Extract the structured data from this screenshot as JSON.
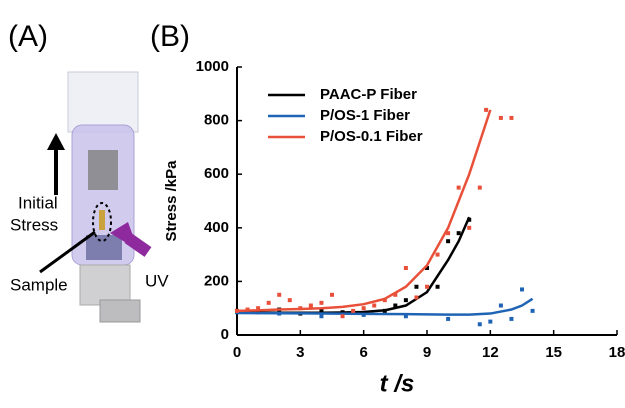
{
  "panels": [
    "(A)",
    "(B)"
  ],
  "illustration": {
    "labels": [
      "Initial",
      "Stress",
      "Sample",
      "UV"
    ]
  },
  "chart_data": {
    "type": "scatter",
    "xlabel": "t /s",
    "ylabel": "Stress /kPa",
    "xlim": [
      0,
      18
    ],
    "xticks": [
      0,
      3,
      6,
      9,
      12,
      15,
      18
    ],
    "ylim": [
      0,
      1000
    ],
    "yticks": [
      0,
      200,
      400,
      600,
      800,
      1000
    ],
    "legend": "upper-left",
    "series": [
      {
        "name": "PAAC-P Fiber",
        "color": "#000000",
        "x": [
          0,
          1,
          2,
          3,
          4,
          5,
          6,
          7,
          7.5,
          8,
          8.5,
          9,
          9.5,
          10,
          10.5,
          11
        ],
        "values": [
          90,
          85,
          95,
          80,
          90,
          85,
          80,
          90,
          110,
          130,
          180,
          250,
          180,
          350,
          380,
          430
        ],
        "fit": {
          "x": [
            0,
            1,
            2,
            3,
            4,
            5,
            6,
            7,
            8,
            9,
            10,
            10.5,
            11
          ],
          "values": [
            85,
            84,
            83,
            83,
            83,
            84,
            86,
            92,
            110,
            160,
            280,
            350,
            440
          ]
        }
      },
      {
        "name": "P/OS-1 Fiber",
        "color": "#1f64b4",
        "x": [
          0,
          2,
          4,
          6,
          8,
          10,
          11.5,
          12,
          12.5,
          13,
          13.5,
          14
        ],
        "values": [
          85,
          80,
          70,
          75,
          70,
          60,
          40,
          50,
          110,
          60,
          170,
          90
        ],
        "fit": {
          "x": [
            0,
            2,
            4,
            6,
            8,
            10,
            11,
            12,
            13,
            13.5,
            14
          ],
          "values": [
            82,
            81,
            80,
            79,
            78,
            76,
            76,
            80,
            95,
            110,
            135
          ]
        }
      },
      {
        "name": "P/OS-0.1 Fiber",
        "color": "#e8503a",
        "x": [
          0,
          0.5,
          1,
          1.5,
          2,
          2.5,
          3,
          3.5,
          4,
          4.5,
          5,
          5.5,
          6,
          6.5,
          7,
          7.5,
          8,
          8.5,
          9,
          9.5,
          10,
          10.5,
          11,
          11.5,
          11.8,
          12.5,
          13
        ],
        "values": [
          90,
          95,
          100,
          120,
          150,
          130,
          100,
          110,
          120,
          150,
          70,
          90,
          100,
          110,
          130,
          150,
          250,
          140,
          180,
          300,
          380,
          550,
          400,
          550,
          840,
          810,
          810
        ],
        "fit": {
          "x": [
            0,
            1,
            2,
            3,
            4,
            5,
            6,
            7,
            8,
            9,
            10,
            11,
            11.5,
            12
          ],
          "values": [
            90,
            92,
            95,
            97,
            100,
            105,
            115,
            135,
            180,
            260,
            400,
            600,
            720,
            840
          ]
        }
      }
    ]
  }
}
